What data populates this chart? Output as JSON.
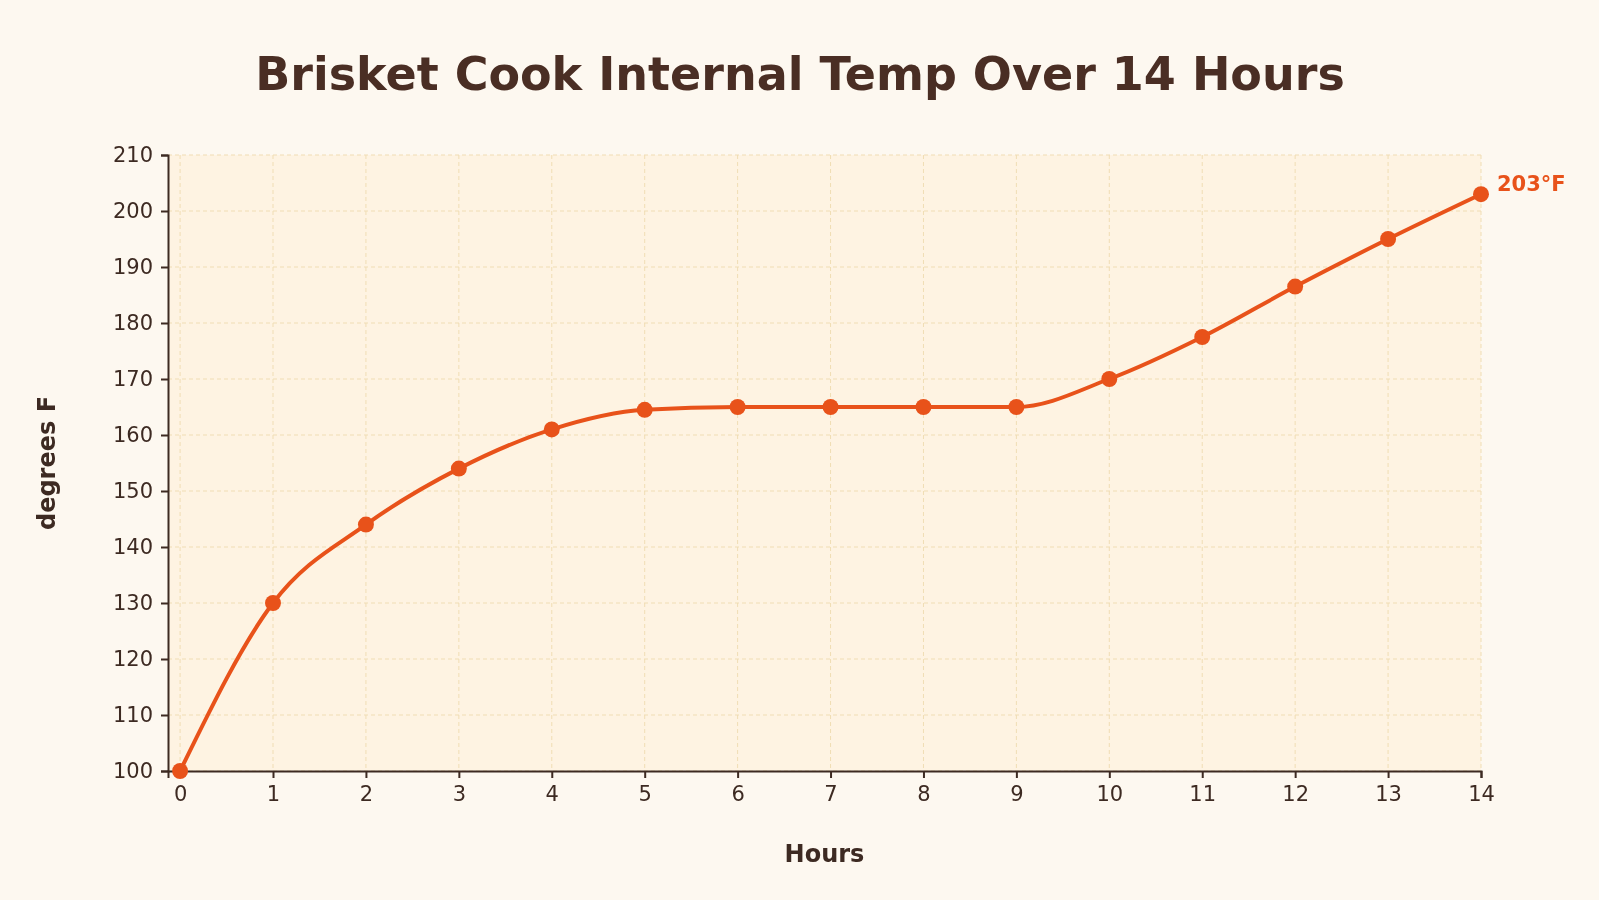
{
  "chart_data": {
    "type": "line",
    "title": "Brisket Cook Internal Temp Over 14 Hours",
    "xlabel": "Hours",
    "ylabel": "degrees F",
    "x": [
      0,
      1,
      2,
      3,
      4,
      5,
      6,
      7,
      8,
      9,
      10,
      11,
      12,
      13,
      14
    ],
    "series": [
      {
        "color": "#e8521a",
        "values": [
          100,
          130,
          144,
          154,
          161,
          164.5,
          165,
          165,
          165,
          165,
          170,
          177.5,
          186.5,
          195,
          203
        ],
        "value_labels": [
          null,
          null,
          null,
          null,
          null,
          null,
          null,
          null,
          null,
          null,
          null,
          null,
          null,
          null,
          "203°F"
        ]
      }
    ],
    "xlim": [
      -0.13,
      14
    ],
    "xticks": [
      0,
      1,
      2,
      3,
      4,
      5,
      6,
      7,
      8,
      9,
      10,
      11,
      12,
      13,
      14
    ],
    "ylim": [
      100,
      210
    ],
    "yticks": [
      100,
      110,
      120,
      130,
      140,
      150,
      160,
      170,
      180,
      190,
      200,
      210
    ],
    "grid": true,
    "marker": "circle",
    "line_style": "solid"
  }
}
